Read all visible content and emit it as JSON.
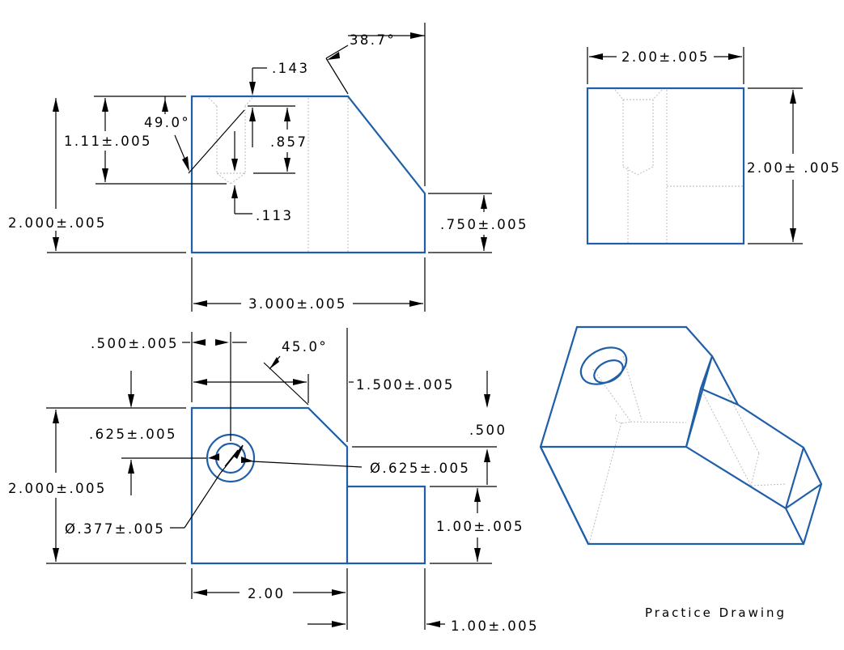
{
  "caption": "Practice Drawing",
  "colors": {
    "part_outline": "#1f5fa8",
    "dimension": "#000000",
    "hidden_line": "#b5b5b5"
  },
  "front_view": {
    "angle_top": "38.7°",
    "cbore_depth": ".143",
    "angle_hole": "49.0°",
    "hole_location": "1.11±.005",
    "hole_depth": ".857",
    "tip_depth": ".113",
    "height": "2.000±.005",
    "right_height": ".750±.005",
    "width": "3.000±.005"
  },
  "side_view": {
    "width": "2.00±.005",
    "height": "2.00± .005"
  },
  "top_view": {
    "left_offset": ".500±.005",
    "chamfer_angle": "45.0°",
    "chamfer_width": "1.500±.005",
    "right_step": ".500",
    "hole_y": ".625±.005",
    "cbore_diameter": "Ø.625±.005",
    "height": "2.000±.005",
    "hole_diameter": "Ø.377±.005",
    "step_height": "1.00±.005",
    "step_location": "2.00",
    "step_width": "1.00±.005"
  }
}
